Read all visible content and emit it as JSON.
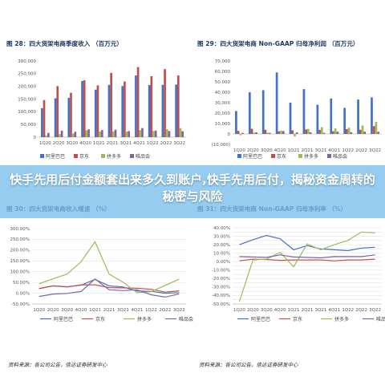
{
  "headline": "快手先用后付金额套出来多久到账户,快手先用后付，揭秘资金周转的秘密与风险",
  "sources": [
    "资料来源：各公司公告，信达证券研发中心",
    "资料来源：各公司公告，信达证券研发中心"
  ],
  "colors": {
    "alibaba": "#4472c4",
    "jd": "#c0504d",
    "pdd": "#9bbb59",
    "vip": "#8064a2",
    "banner": "#7abce8"
  },
  "chart_data": [
    {
      "type": "bar",
      "title": "图 28：四大货架电商季度收入 （百万元）",
      "categories": [
        "1Q20",
        "2Q20",
        "3Q20",
        "4Q20",
        "1Q21",
        "2Q21",
        "3Q21",
        "4Q21",
        "1Q22",
        "2Q22",
        "3Q22"
      ],
      "ylim": [
        0,
        300000
      ],
      "yticks": [
        "0",
        "50,000",
        "100,000",
        "150,000",
        "200,000",
        "250,000",
        "300,000"
      ],
      "series": [
        {
          "name": "阿里巴巴",
          "values": [
            114000,
            153000,
            155000,
            221000,
            187000,
            206000,
            201000,
            243000,
            205000,
            206000,
            207000
          ]
        },
        {
          "name": "京东",
          "values": [
            146000,
            201000,
            175000,
            224000,
            204000,
            253000,
            219000,
            276000,
            240000,
            268000,
            243000
          ]
        },
        {
          "name": "拼多多",
          "values": [
            6500,
            12200,
            14200,
            26500,
            22200,
            23000,
            21500,
            27200,
            23800,
            31400,
            35500
          ]
        },
        {
          "name": "唯品会",
          "values": [
            16700,
            25500,
            21400,
            30900,
            28000,
            29600,
            24000,
            35800,
            25900,
            24200,
            23300
          ]
        }
      ],
      "legend": "bottom"
    },
    {
      "type": "bar",
      "title": "图 29：四大货架电商 Non-GAAP 归母净利润 （百万元）",
      "categories": [
        "1Q20",
        "2Q20",
        "3Q20",
        "4Q20",
        "1Q21",
        "2Q21",
        "3Q21",
        "4Q21",
        "1Q22",
        "2Q22",
        "3Q22"
      ],
      "ylim": [
        -10000,
        70000
      ],
      "yticks": [
        "(10,000)",
        "0",
        "10,000",
        "20,000",
        "30,000",
        "40,000",
        "50,000",
        "60,000",
        "70,000"
      ],
      "series": [
        {
          "name": "阿里巴巴",
          "values": [
            22000,
            40000,
            42000,
            59000,
            30000,
            43000,
            28000,
            34000,
            25000,
            33000,
            35000
          ]
        },
        {
          "name": "京东",
          "values": [
            3000,
            5000,
            4000,
            2500,
            3500,
            4300,
            3900,
            2600,
            4600,
            4000,
            7500
          ]
        },
        {
          "name": "拼多多",
          "values": [
            -1200,
            1300,
            1300,
            3200,
            -2400,
            4900,
            6500,
            5300,
            5900,
            8100,
            11600
          ]
        },
        {
          "name": "唯品会",
          "values": [
            1000,
            1500,
            1000,
            2700,
            1500,
            1600,
            1000,
            2200,
            1600,
            2200,
            2100
          ]
        }
      ],
      "legend": "bottom"
    },
    {
      "type": "line",
      "title": "图 30：四大货架电商收入增速 （%）",
      "categories": [
        "1Q20",
        "2Q20",
        "3Q20",
        "4Q20",
        "1Q21",
        "2Q21",
        "3Q21",
        "4Q21",
        "1Q22",
        "2Q22",
        "3Q22"
      ],
      "ylim": [
        -50,
        300
      ],
      "yticks": [
        "-50.00%",
        "0.00%",
        "50.00%",
        "100.00%",
        "150.00%",
        "200.00%",
        "250.00%",
        "300.00%"
      ],
      "series": [
        {
          "name": "阿里巴巴",
          "values": [
            22,
            34,
            30,
            37,
            64,
            34,
            29,
            10,
            9,
            0,
            3
          ]
        },
        {
          "name": "京东",
          "values": [
            21,
            34,
            29,
            39,
            39,
            26,
            25,
            23,
            18,
            5,
            11
          ]
        },
        {
          "name": "拼多多",
          "values": [
            44,
            67,
            89,
            146,
            239,
            89,
            51,
            3,
            7,
            36,
            65
          ]
        },
        {
          "name": "唯品会",
          "values": [
            -15,
            -4,
            -1,
            8,
            66,
            16,
            12,
            16,
            -7,
            -18,
            -3
          ]
        }
      ],
      "legend": "bottom"
    },
    {
      "type": "line",
      "title": "图 31：四大货架电商 Non-GAAP 归母净利率 （%）",
      "categories": [
        "1Q20",
        "2Q20",
        "3Q20",
        "4Q20",
        "1Q21",
        "2Q21",
        "3Q21",
        "4Q21",
        "1Q22",
        "2Q22",
        "3Q22"
      ],
      "ylim": [
        -50,
        40
      ],
      "yticks": [
        "-50.00%",
        "-45.00%",
        "-40.00%",
        "-35.00%",
        "-30.00%",
        "-25.00%",
        "-20.00%",
        "-15.00%",
        "-10.00%",
        "-5.00%",
        "0.00%",
        "5.00%",
        "10.00%",
        "15.00%",
        "20.00%",
        "25.00%",
        "30.00%",
        "35.00%",
        "40.00%"
      ],
      "series": [
        {
          "name": "阿里巴巴",
          "values": [
            20,
            26,
            31,
            27,
            14,
            19,
            15,
            14,
            13,
            16,
            17
          ]
        },
        {
          "name": "京东",
          "values": [
            1,
            3,
            2.5,
            1.5,
            2,
            2,
            2,
            1,
            2,
            2,
            3
          ]
        },
        {
          "name": "拼多多",
          "values": [
            -47,
            2,
            3,
            11,
            -6,
            21,
            14,
            20,
            25,
            35,
            34
          ]
        },
        {
          "name": "唯品会",
          "values": [
            6,
            5.5,
            5,
            8,
            5.5,
            5,
            4.5,
            6,
            6,
            6,
            8
          ]
        }
      ],
      "legend": "bottom"
    }
  ]
}
